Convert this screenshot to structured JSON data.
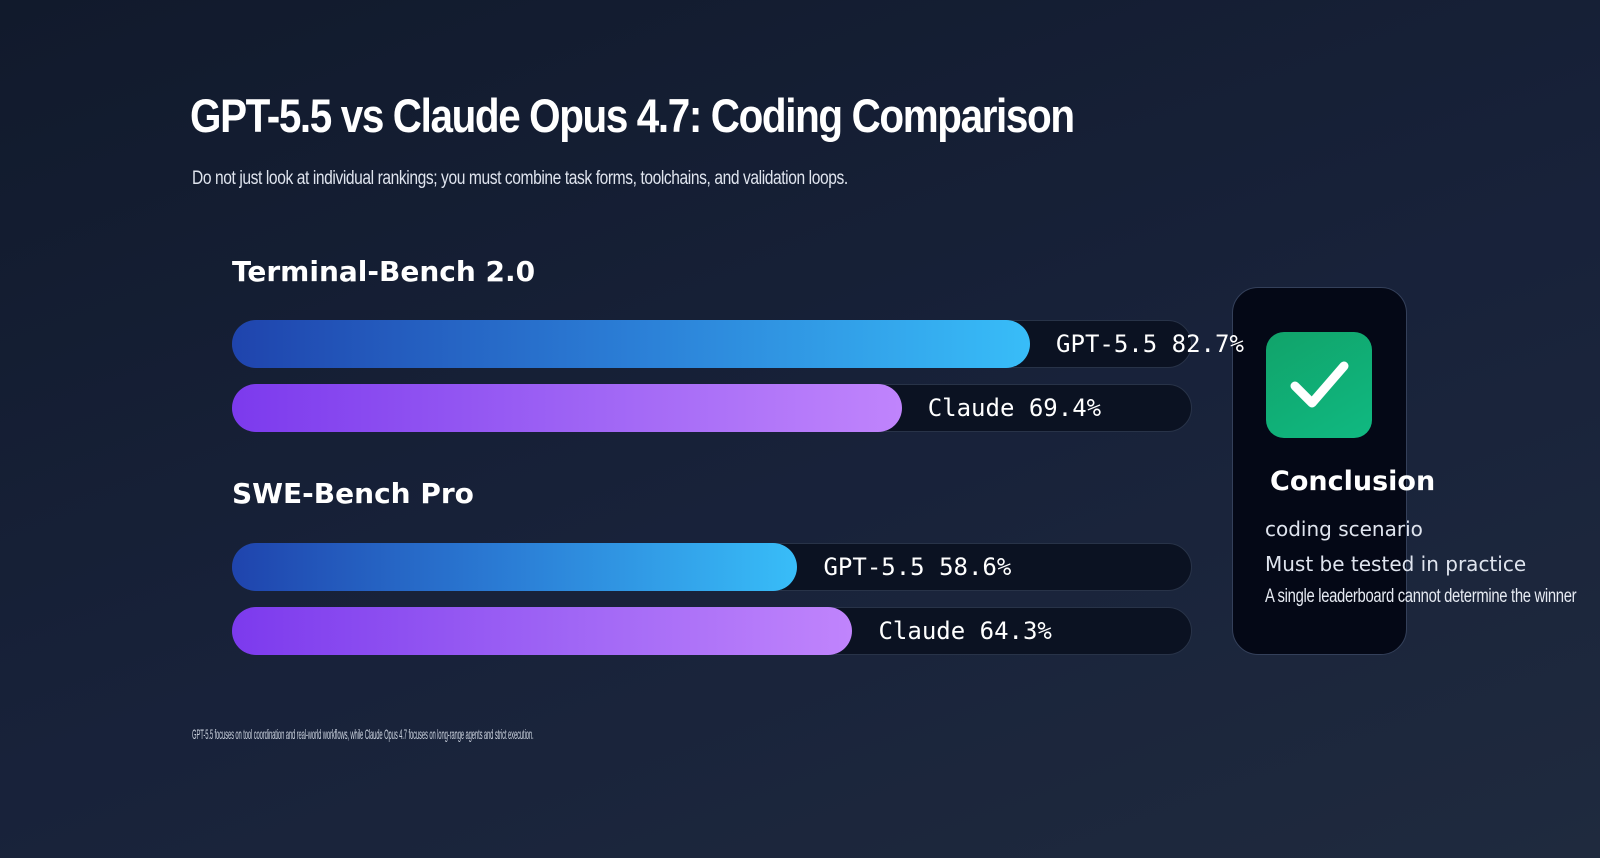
{
  "title": "GPT-5.5 vs Claude Opus 4.7: Coding Comparison",
  "subtitle": "Do not just look at individual rankings; you must combine task forms, toolchains, and validation loops.",
  "chart_data": [
    {
      "type": "bar",
      "orientation": "horizontal",
      "title": "Terminal-Bench 2.0",
      "categories": [
        "GPT-5.5",
        "Claude"
      ],
      "values": [
        82.7,
        69.4
      ],
      "unit": "%",
      "labels": [
        "GPT-5.5 82.7%",
        "Claude 69.4%"
      ],
      "colors": [
        "#38bdf8",
        "#c084fc"
      ]
    },
    {
      "type": "bar",
      "orientation": "horizontal",
      "title": "SWE-Bench Pro",
      "categories": [
        "GPT-5.5",
        "Claude"
      ],
      "values": [
        58.6,
        64.3
      ],
      "unit": "%",
      "labels": [
        "GPT-5.5 58.6%",
        "Claude 64.3%"
      ],
      "colors": [
        "#38bdf8",
        "#c084fc"
      ]
    }
  ],
  "conclusion": {
    "icon": "check-icon",
    "title": "Conclusion",
    "lines": [
      "coding scenario",
      "Must be tested in practice"
    ],
    "note": "A single leaderboard cannot determine the winner",
    "accent": "#10b981"
  },
  "footnote": "GPT-5.5 focuses on tool coordination and real-world workflows, while Claude Opus 4.7 focuses on long-range agents and strict execution."
}
